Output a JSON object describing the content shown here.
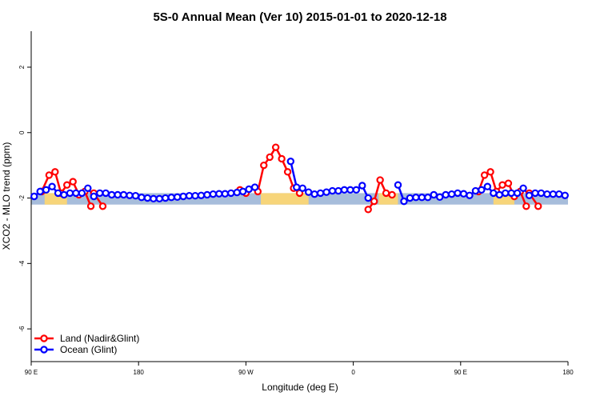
{
  "chart_data": {
    "type": "line",
    "title": "5S-0 Annual Mean (Ver 10)   2015-01-01 to 2020-12-18",
    "xlabel": "Longitude (deg E)",
    "ylabel": "XCO2 - MLO trend (ppm)",
    "xlim": [
      90,
      270
    ],
    "ylim": [
      -7,
      3.1
    ],
    "x_ticks": [
      {
        "value": 90,
        "label": "90 E"
      },
      {
        "value": 126,
        "label": "180"
      },
      {
        "value": 162,
        "label": "90 W"
      },
      {
        "value": 198,
        "label": "0"
      },
      {
        "value": 234,
        "label": "90 E"
      },
      {
        "value": 270,
        "label": "180"
      }
    ],
    "y_ticks": [
      {
        "value": 2,
        "label": "2"
      },
      {
        "value": 0,
        "label": "0"
      },
      {
        "value": -2,
        "label": "-2"
      },
      {
        "value": -4,
        "label": "-4"
      },
      {
        "value": -6,
        "label": "-6"
      }
    ],
    "band": {
      "lower": -2.2,
      "upper": -1.85,
      "color": "#a7bddb",
      "land_color": "#f7d57a",
      "land_segments": [
        [
          94.5,
          102
        ],
        [
          167,
          183
        ],
        [
          206.5,
          213
        ],
        [
          245,
          252
        ]
      ]
    },
    "legend_position": "bottom-left",
    "series": [
      {
        "name": "Land (Nadir&Glint)",
        "color": "#ff0000",
        "segments": [
          [
            [
              93.5,
              -1.8
            ],
            [
              96,
              -1.3
            ],
            [
              98,
              -1.2
            ],
            [
              100,
              -1.85
            ],
            [
              102,
              -1.6
            ],
            [
              104,
              -1.5
            ],
            [
              106,
              -1.9
            ],
            [
              108,
              -1.8
            ],
            [
              110,
              -2.25
            ]
          ],
          [
            [
              111,
              -1.85
            ],
            [
              114,
              -2.25
            ]
          ],
          [
            [
              160,
              -1.75
            ],
            [
              162,
              -1.85
            ]
          ],
          [
            [
              166,
              -1.8
            ],
            [
              168,
              -1.0
            ],
            [
              170,
              -0.75
            ],
            [
              172,
              -0.45
            ],
            [
              174,
              -0.8
            ],
            [
              176,
              -1.2
            ],
            [
              178,
              -1.7
            ],
            [
              180,
              -1.85
            ]
          ],
          [
            [
              203,
              -2.35
            ],
            [
              205,
              -2.1
            ],
            [
              207,
              -1.45
            ],
            [
              209,
              -1.85
            ],
            [
              211,
              -1.9
            ]
          ],
          [
            [
              240,
              -1.8
            ],
            [
              242,
              -1.3
            ],
            [
              244,
              -1.2
            ],
            [
              246,
              -1.8
            ],
            [
              248,
              -1.6
            ],
            [
              250,
              -1.55
            ],
            [
              252,
              -1.95
            ],
            [
              254,
              -1.8
            ],
            [
              256,
              -2.25
            ]
          ],
          [
            [
              257,
              -1.85
            ],
            [
              260,
              -2.25
            ]
          ]
        ]
      },
      {
        "name": "Ocean (Glint)",
        "color": "#0000ff",
        "points": [
          [
            91,
            -1.95
          ],
          [
            93,
            -1.8
          ],
          [
            95,
            -1.75
          ],
          [
            97,
            -1.65
          ],
          [
            99,
            -1.85
          ],
          [
            101,
            -1.9
          ],
          [
            103,
            -1.85
          ],
          [
            105,
            -1.85
          ],
          [
            107,
            -1.85
          ],
          [
            109,
            -1.7
          ],
          [
            111,
            -1.95
          ],
          [
            113,
            -1.85
          ],
          [
            115,
            -1.85
          ],
          [
            117,
            -1.9
          ],
          [
            119,
            -1.9
          ],
          [
            121,
            -1.9
          ],
          [
            123,
            -1.92
          ],
          [
            125,
            -1.93
          ],
          [
            127,
            -1.98
          ],
          [
            129,
            -2.0
          ],
          [
            131,
            -2.02
          ],
          [
            133,
            -2.02
          ],
          [
            135,
            -2.0
          ],
          [
            137,
            -1.98
          ],
          [
            139,
            -1.97
          ],
          [
            141,
            -1.95
          ],
          [
            143,
            -1.93
          ],
          [
            145,
            -1.93
          ],
          [
            147,
            -1.92
          ],
          [
            149,
            -1.9
          ],
          [
            151,
            -1.88
          ],
          [
            153,
            -1.87
          ],
          [
            155,
            -1.87
          ],
          [
            157,
            -1.85
          ],
          [
            159,
            -1.83
          ],
          [
            161,
            -1.8
          ],
          [
            163,
            -1.73
          ],
          [
            165,
            -1.67
          ],
          [
            177,
            -0.88
          ],
          [
            179,
            -1.67
          ],
          [
            181,
            -1.7
          ],
          [
            183,
            -1.82
          ],
          [
            185,
            -1.88
          ],
          [
            187,
            -1.85
          ],
          [
            189,
            -1.82
          ],
          [
            191,
            -1.78
          ],
          [
            193,
            -1.78
          ],
          [
            195,
            -1.75
          ],
          [
            197,
            -1.75
          ],
          [
            199,
            -1.75
          ],
          [
            201,
            -1.62
          ],
          [
            203,
            -2.0
          ],
          [
            213,
            -1.6
          ],
          [
            215,
            -2.1
          ],
          [
            217,
            -2.0
          ],
          [
            219,
            -1.98
          ],
          [
            221,
            -1.98
          ],
          [
            223,
            -1.98
          ],
          [
            225,
            -1.9
          ],
          [
            227,
            -1.97
          ],
          [
            229,
            -1.9
          ],
          [
            231,
            -1.88
          ],
          [
            233,
            -1.85
          ],
          [
            235,
            -1.87
          ],
          [
            237,
            -1.92
          ],
          [
            239,
            -1.78
          ],
          [
            241,
            -1.75
          ],
          [
            243,
            -1.65
          ],
          [
            245,
            -1.85
          ],
          [
            247,
            -1.9
          ],
          [
            249,
            -1.85
          ],
          [
            251,
            -1.85
          ],
          [
            253,
            -1.85
          ],
          [
            255,
            -1.7
          ],
          [
            257,
            -1.92
          ],
          [
            259,
            -1.85
          ],
          [
            261,
            -1.85
          ],
          [
            263,
            -1.88
          ],
          [
            265,
            -1.88
          ],
          [
            267,
            -1.88
          ],
          [
            269,
            -1.92
          ]
        ]
      }
    ]
  }
}
